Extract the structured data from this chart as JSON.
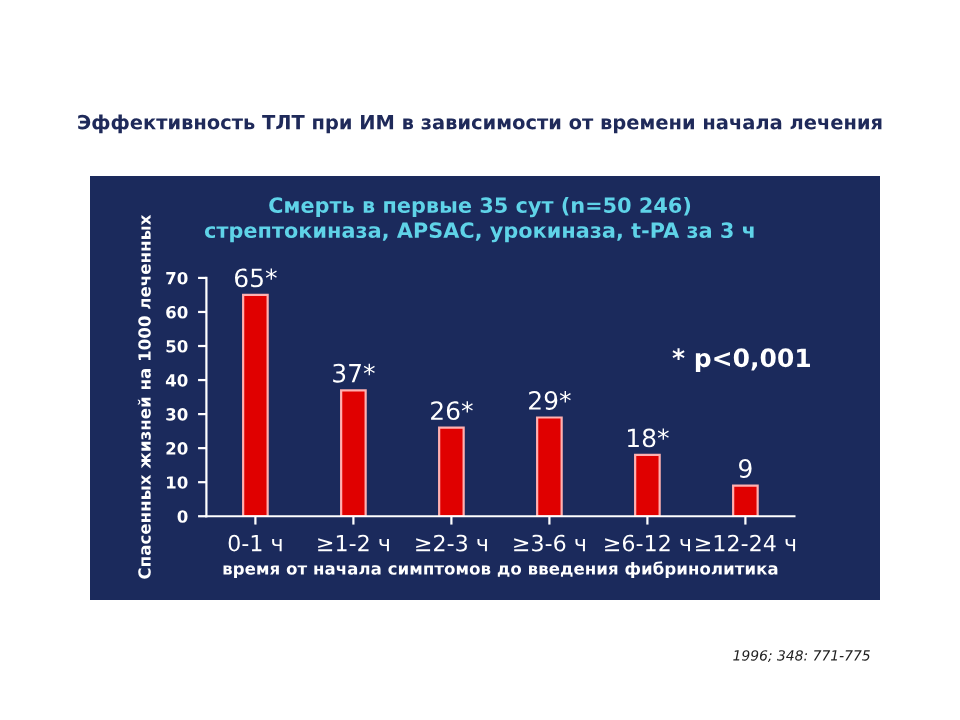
{
  "chart_data": {
    "type": "bar",
    "title": "Эффективность ТЛТ при ИМ в зависимости от времени начала лечения",
    "subtitle": "Смерть в первые 35 сут (n=50 246)\nстрептокиназа, APSAC, урокиназа, t-PA за 3 ч",
    "ylabel": "Спасенных жизней на 1000 леченных",
    "xlabel": "время от начала симптомов до введения фибринолитика",
    "categories": [
      "0-1 ч",
      "≥1-2 ч",
      "≥2-3 ч",
      "≥3-6 ч",
      "≥6-12 ч",
      "≥12-24 ч"
    ],
    "values": [
      65,
      37,
      26,
      29,
      18,
      9
    ],
    "value_labels": [
      "65*",
      "37*",
      "26*",
      "29*",
      "18*",
      "9"
    ],
    "color": "#e00000",
    "ylim": [
      0,
      70
    ],
    "yticks": [
      0,
      10,
      20,
      30,
      40,
      50,
      60,
      70
    ],
    "grid": false,
    "annotations": [
      "* p<0,001",
      "1996; 348: 771-775"
    ]
  }
}
